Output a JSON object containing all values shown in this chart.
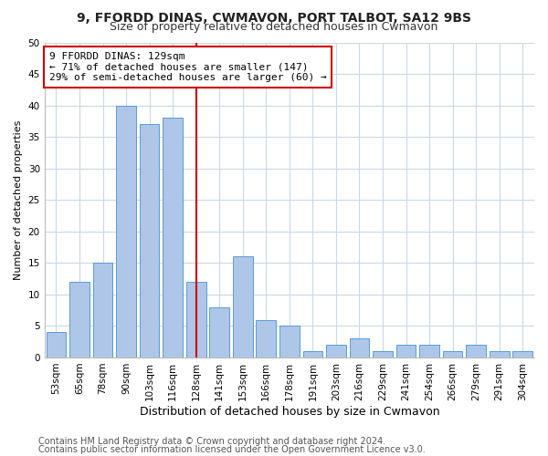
{
  "title1": "9, FFORDD DINAS, CWMAVON, PORT TALBOT, SA12 9BS",
  "title2": "Size of property relative to detached houses in Cwmavon",
  "xlabel": "Distribution of detached houses by size in Cwmavon",
  "ylabel": "Number of detached properties",
  "categories": [
    "53sqm",
    "65sqm",
    "78sqm",
    "90sqm",
    "103sqm",
    "116sqm",
    "128sqm",
    "141sqm",
    "153sqm",
    "166sqm",
    "178sqm",
    "191sqm",
    "203sqm",
    "216sqm",
    "229sqm",
    "241sqm",
    "254sqm",
    "266sqm",
    "279sqm",
    "291sqm",
    "304sqm"
  ],
  "values": [
    4,
    12,
    15,
    40,
    37,
    38,
    12,
    8,
    16,
    6,
    5,
    1,
    2,
    3,
    1,
    2,
    2,
    1,
    2,
    1,
    1
  ],
  "bar_color": "#aec6e8",
  "bar_edge_color": "#5b9bd5",
  "vline_x_index": 6,
  "vline_color": "#cc0000",
  "annotation_line1": "9 FFORDD DINAS: 129sqm",
  "annotation_line2": "← 71% of detached houses are smaller (147)",
  "annotation_line3": "29% of semi-detached houses are larger (60) →",
  "annotation_box_color": "#cc0000",
  "footer1": "Contains HM Land Registry data © Crown copyright and database right 2024.",
  "footer2": "Contains public sector information licensed under the Open Government Licence v3.0.",
  "bg_color": "#ffffff",
  "grid_color": "#c8d8e8",
  "ylim": [
    0,
    50
  ],
  "yticks": [
    0,
    5,
    10,
    15,
    20,
    25,
    30,
    35,
    40,
    45,
    50
  ],
  "title1_fontsize": 10,
  "title2_fontsize": 9,
  "xlabel_fontsize": 9,
  "ylabel_fontsize": 8,
  "tick_fontsize": 7.5,
  "annotation_fontsize": 8,
  "footer_fontsize": 7
}
